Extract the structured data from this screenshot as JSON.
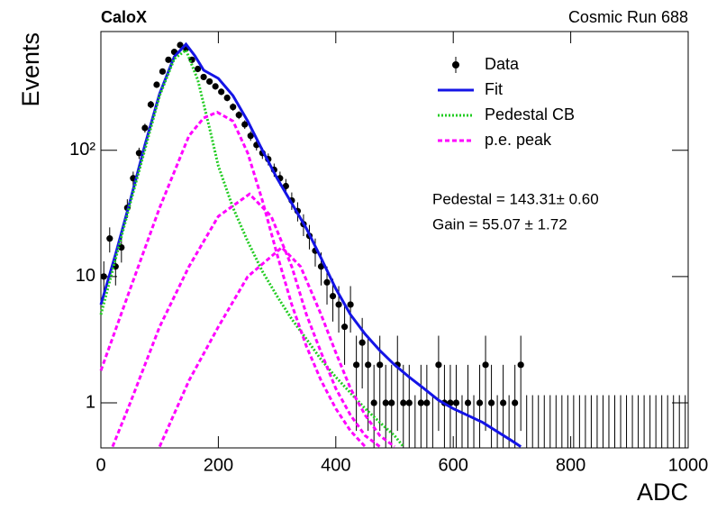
{
  "chart_data": {
    "type": "scatter",
    "title": "CaloX",
    "subtitle": "Cosmic Run 688",
    "x_label": "ADC",
    "y_label": "Events",
    "log_y": true,
    "grid": false,
    "legend": "upper right",
    "annotations": [
      "Pedestal = 143.31± 0.60",
      "Gain = 55.07 ± 1.72"
    ],
    "xlim": [
      0,
      1000
    ],
    "xticks": [
      0,
      200,
      400,
      600,
      800,
      1000
    ],
    "ylim": [
      0.44,
      870
    ],
    "yticks": [
      1,
      10,
      {
        "value": 100,
        "label": "10²"
      }
    ],
    "series": [
      {
        "name": "Data",
        "color": "#000000",
        "marker": "circle",
        "x": [
          5,
          15,
          25,
          35,
          45,
          55,
          65,
          75,
          85,
          95,
          105,
          115,
          125,
          135,
          145,
          155,
          165,
          175,
          185,
          195,
          205,
          215,
          225,
          235,
          245,
          255,
          265,
          275,
          285,
          295,
          305,
          315,
          325,
          335,
          345,
          355,
          365,
          375,
          385,
          395,
          405,
          415,
          425,
          435,
          445,
          455,
          465,
          475,
          485,
          495,
          505,
          515,
          525,
          535,
          545,
          555,
          565,
          575,
          585,
          595,
          605,
          615,
          625,
          635,
          645,
          655,
          665,
          675,
          685,
          695,
          705,
          715,
          725,
          735,
          745,
          755,
          765,
          775,
          785,
          795,
          805,
          815,
          825,
          835,
          845,
          855,
          865,
          875,
          885,
          895,
          905,
          915,
          925,
          935,
          945,
          955,
          965,
          975,
          985,
          995
        ],
        "values": [
          10,
          20,
          12,
          17,
          35,
          60,
          95,
          150,
          230,
          330,
          420,
          520,
          600,
          680,
          640,
          520,
          440,
          380,
          350,
          320,
          290,
          260,
          220,
          190,
          160,
          130,
          110,
          95,
          85,
          70,
          60,
          52,
          40,
          33,
          26,
          21,
          16,
          12,
          9,
          7,
          6,
          4,
          6,
          2,
          3,
          2,
          1,
          2,
          1,
          1,
          2,
          1,
          1,
          0,
          1,
          1,
          0,
          2,
          1,
          1,
          1,
          0,
          1,
          0,
          1,
          2,
          1,
          0,
          1,
          0,
          1,
          2,
          0,
          0,
          0,
          0,
          0,
          0,
          0,
          0,
          0,
          0,
          0,
          0,
          0,
          0,
          0,
          0,
          0,
          0,
          0,
          0,
          0,
          0,
          0,
          0,
          0,
          0,
          0,
          0
        ],
        "errors": [
          3.2,
          4.5,
          3.5,
          4.1,
          5.9,
          7.7,
          9.7,
          12.2,
          15.2,
          18.2,
          20.5,
          22.8,
          24.5,
          26.1,
          25.3,
          22.8,
          21,
          19.5,
          18.7,
          17.9,
          17,
          16.1,
          14.8,
          13.8,
          12.6,
          11.4,
          10.5,
          9.7,
          9.2,
          8.4,
          7.7,
          7.2,
          6.3,
          5.7,
          5.1,
          4.6,
          4,
          3.5,
          3,
          2.6,
          2.4,
          2,
          2.4,
          1.4,
          1.7,
          1.4,
          1,
          1.4,
          1,
          1,
          1.4,
          1,
          1,
          1.15,
          1,
          1,
          1.15,
          1.4,
          1,
          1,
          1,
          1.15,
          1,
          1.15,
          1,
          1.4,
          1,
          1.15,
          1,
          1.15,
          1,
          1.4,
          1.15,
          1.15,
          1.15,
          1.15,
          1.15,
          1.15,
          1.15,
          1.15,
          1.15,
          1.15,
          1.15,
          1.15,
          1.15,
          1.15,
          1.15,
          1.15,
          1.15,
          1.15,
          1.15,
          1.15,
          1.15,
          1.15,
          1.15,
          1.15,
          1.15,
          1.15,
          1.15,
          1.15
        ]
      },
      {
        "name": "Fit",
        "color": "#1414e6",
        "line": "solid",
        "curves": [
          {
            "x": [
              0,
              25,
              50,
              75,
              100,
              125,
              145,
              160,
              175,
              200,
              225,
              250,
              275,
              300,
              325,
              350,
              375,
              400,
              425,
              450,
              475,
              500,
              525,
              550,
              575,
              600,
              650,
              700,
              715
            ],
            "values": [
              6,
              15,
              40,
              110,
              280,
              550,
              690,
              560,
              430,
              370,
              270,
              170,
              100,
              60,
              38,
              24,
              14,
              8,
              5,
              3.5,
              2.6,
              2,
              1.6,
              1.3,
              1.05,
              0.9,
              0.7,
              0.5,
              0.45
            ]
          }
        ]
      },
      {
        "name": "Pedestal CB",
        "color": "#22cc22",
        "line": "dotted",
        "curves": [
          {
            "x": [
              0,
              50,
              100,
              125,
              145,
              165,
              185,
              200,
              225,
              250,
              275,
              300,
              325,
              350,
              375,
              400,
              425,
              450,
              475,
              500,
              515
            ],
            "values": [
              5,
              38,
              270,
              530,
              620,
              360,
              150,
              75,
              35,
              19,
              11,
              7,
              4.6,
              3.2,
              2.2,
              1.6,
              1.2,
              0.9,
              0.7,
              0.55,
              0.45
            ]
          }
        ]
      },
      {
        "name": "p.e. peak",
        "color": "#ff00ff",
        "line": "dashed",
        "curves": [
          {
            "x": [
              0,
              50,
              100,
              150,
              175,
              198,
              225,
              250,
              275,
              300,
              325,
              350,
              375,
              400,
              425,
              450
            ],
            "values": [
              1.8,
              8,
              35,
              130,
              180,
              200,
              170,
              95,
              40,
              15,
              6,
              2.8,
              1.5,
              0.9,
              0.6,
              0.45
            ]
          },
          {
            "x": [
              20,
              50,
              100,
              150,
              200,
              253,
              290,
              325,
              350,
              375,
              400,
              425,
              450,
              475
            ],
            "values": [
              0.45,
              1,
              4,
              12,
              30,
              45,
              30,
              12,
              5,
              2.5,
              1.3,
              0.8,
              0.55,
              0.45
            ]
          },
          {
            "x": [
              100,
              150,
              200,
              250,
              308,
              340,
              375,
              400,
              425,
              450,
              475,
              500
            ],
            "values": [
              0.45,
              1.5,
              4,
              10,
              17,
              12,
              5,
              2.5,
              1.3,
              0.8,
              0.55,
              0.45
            ]
          }
        ]
      }
    ]
  }
}
